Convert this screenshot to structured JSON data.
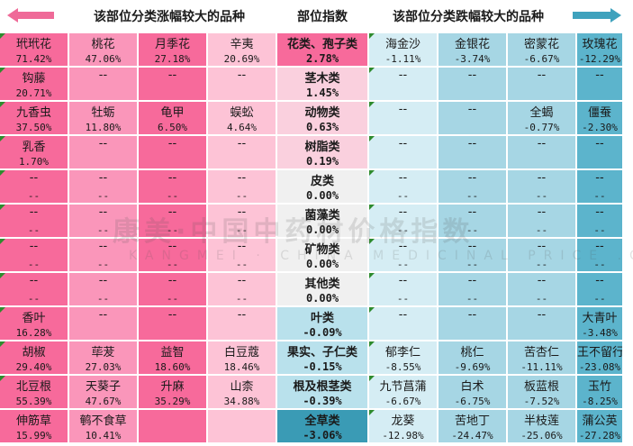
{
  "chart_data": {
    "type": "table",
    "headers": {
      "left": "该部位分类涨幅较大的品种",
      "middle": "部位指数",
      "right": "该部位分类跌幅较大的品种"
    },
    "colors": {
      "rise_dark": "#f76a9b",
      "rise_mid": "#fa96ba",
      "rise_light": "#fdc3d6",
      "fall_dark": "#5cb4cc",
      "fall_mid": "#a6d6e4",
      "fall_light": "#d5edf4",
      "mid_rise_dark": "#f76a9b",
      "mid_rise_light": "#fad0de",
      "mid_flat": "#f0f0f0",
      "mid_fall_light": "#b9e1ec",
      "mid_fall_dark": "#3a9bb5",
      "marker": "#2e8b2e"
    },
    "categories": [
      {
        "name": "花类、孢子类",
        "index": "2.78%",
        "rise": [
          [
            "玳玳花",
            "71.42%"
          ],
          [
            "桃花",
            "47.06%"
          ],
          [
            "月季花",
            "27.18%"
          ],
          [
            "辛夷",
            "20.69%"
          ]
        ],
        "fall": [
          [
            "海金沙",
            "-1.11%"
          ],
          [
            "金银花",
            "-3.74%"
          ],
          [
            "密蒙花",
            "-6.67%"
          ],
          [
            "玫瑰花",
            "-12.29%"
          ]
        ]
      },
      {
        "name": "茎木类",
        "index": "1.45%",
        "rise": [
          [
            "钩藤",
            "20.71%"
          ],
          [
            "--",
            ""
          ],
          [
            "--",
            ""
          ],
          [
            "--",
            ""
          ]
        ],
        "fall": [
          [
            "--",
            ""
          ],
          [
            "--",
            ""
          ],
          [
            "--",
            ""
          ],
          [
            "--",
            ""
          ]
        ]
      },
      {
        "name": "动物类",
        "index": "0.63%",
        "rise": [
          [
            "九香虫",
            "37.50%"
          ],
          [
            "牡蛎",
            "11.80%"
          ],
          [
            "龟甲",
            "6.50%"
          ],
          [
            "蜈蚣",
            "4.64%"
          ]
        ],
        "fall": [
          [
            "--",
            ""
          ],
          [
            "--",
            ""
          ],
          [
            "全蝎",
            "-0.77%"
          ],
          [
            "僵蚕",
            "-2.30%"
          ]
        ]
      },
      {
        "name": "树脂类",
        "index": "0.19%",
        "rise": [
          [
            "乳香",
            "1.70%"
          ],
          [
            "--",
            ""
          ],
          [
            "--",
            ""
          ],
          [
            "--",
            ""
          ]
        ],
        "fall": [
          [
            "--",
            ""
          ],
          [
            "--",
            ""
          ],
          [
            "--",
            ""
          ],
          [
            "--",
            ""
          ]
        ]
      },
      {
        "name": "皮类",
        "index": "0.00%",
        "rise": [
          [
            "--",
            "--"
          ],
          [
            "--",
            "--"
          ],
          [
            "--",
            "--"
          ],
          [
            "--",
            "--"
          ]
        ],
        "fall": [
          [
            "--",
            "--"
          ],
          [
            "--",
            "--"
          ],
          [
            "--",
            "--"
          ],
          [
            "--",
            "--"
          ]
        ]
      },
      {
        "name": "菌藻类",
        "index": "0.00%",
        "rise": [
          [
            "--",
            "--"
          ],
          [
            "--",
            "--"
          ],
          [
            "--",
            "--"
          ],
          [
            "--",
            "--"
          ]
        ],
        "fall": [
          [
            "--",
            "--"
          ],
          [
            "--",
            "--"
          ],
          [
            "--",
            "--"
          ],
          [
            "--",
            "--"
          ]
        ]
      },
      {
        "name": "矿物类",
        "index": "0.00%",
        "rise": [
          [
            "--",
            "--"
          ],
          [
            "--",
            "--"
          ],
          [
            "--",
            "--"
          ],
          [
            "--",
            "--"
          ]
        ],
        "fall": [
          [
            "--",
            "--"
          ],
          [
            "--",
            "--"
          ],
          [
            "--",
            "--"
          ],
          [
            "--",
            "--"
          ]
        ]
      },
      {
        "name": "其他类",
        "index": "0.00%",
        "rise": [
          [
            "--",
            "--"
          ],
          [
            "--",
            "--"
          ],
          [
            "--",
            "--"
          ],
          [
            "--",
            "--"
          ]
        ],
        "fall": [
          [
            "--",
            "--"
          ],
          [
            "--",
            "--"
          ],
          [
            "--",
            "--"
          ],
          [
            "--",
            "--"
          ]
        ]
      },
      {
        "name": "叶类",
        "index": "-0.09%",
        "rise": [
          [
            "香叶",
            "16.28%"
          ],
          [
            "--",
            ""
          ],
          [
            "--",
            ""
          ],
          [
            "--",
            ""
          ]
        ],
        "fall": [
          [
            "--",
            ""
          ],
          [
            "--",
            ""
          ],
          [
            "--",
            ""
          ],
          [
            "大青叶",
            "-3.48%"
          ]
        ]
      },
      {
        "name": "果实、子仁类",
        "index": "-0.15%",
        "rise": [
          [
            "胡椒",
            "29.40%"
          ],
          [
            "荜茇",
            "27.03%"
          ],
          [
            "益智",
            "18.60%"
          ],
          [
            "白豆蔻",
            "18.46%"
          ]
        ],
        "fall": [
          [
            "郁李仁",
            "-8.55%"
          ],
          [
            "桃仁",
            "-9.69%"
          ],
          [
            "苦杏仁",
            "-11.11%"
          ],
          [
            "王不留行",
            "-23.08%"
          ]
        ]
      },
      {
        "name": "根及根茎类",
        "index": "-0.39%",
        "rise": [
          [
            "北豆根",
            "55.39%"
          ],
          [
            "天葵子",
            "47.67%"
          ],
          [
            "升麻",
            "35.29%"
          ],
          [
            "山柰",
            "34.88%"
          ]
        ],
        "fall": [
          [
            "九节菖蒲",
            "-6.67%"
          ],
          [
            "白术",
            "-6.75%"
          ],
          [
            "板蓝根",
            "-7.52%"
          ],
          [
            "玉竹",
            "-8.25%"
          ]
        ]
      },
      {
        "name": "全草类",
        "index": "-3.06%",
        "rise": [
          [
            "伸筋草",
            "15.99%"
          ],
          [
            "鹌不食草",
            "10.41%"
          ],
          [
            "",
            ""
          ],
          [
            "",
            ""
          ]
        ],
        "fall": [
          [
            "龙葵",
            "-12.98%"
          ],
          [
            "苦地丁",
            "-24.47%"
          ],
          [
            "半枝莲",
            "-25.06%"
          ],
          [
            "蒲公英",
            "-27.28%"
          ]
        ]
      }
    ]
  },
  "watermark": {
    "line1": "康美·中国中药材价格指数",
    "line2": "KANGMEI · CHINA  MEDICINAL  PRICE  .COM"
  },
  "icons": {
    "left_arrow": "left-arrow-icon",
    "right_arrow": "right-arrow-icon"
  }
}
